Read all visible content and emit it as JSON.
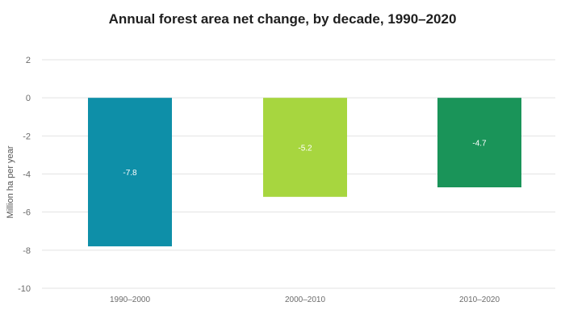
{
  "chart_data": {
    "type": "bar",
    "title": "Annual forest area net change, by decade, 1990–2020",
    "xlabel": "",
    "ylabel": "Million ha per year",
    "categories": [
      "1990–2000",
      "2000–2010",
      "2010–2020"
    ],
    "values": [
      -7.8,
      -5.2,
      -4.7
    ],
    "value_labels": [
      "-7.8",
      "-5.2",
      "-4.7"
    ],
    "colors": [
      "#0e8fa8",
      "#a7d63f",
      "#1a9459"
    ],
    "ylim": [
      -10,
      2
    ],
    "yticks": [
      2,
      0,
      -2,
      -4,
      -6,
      -8,
      -10
    ],
    "ytick_labels": [
      "2",
      "0",
      "-2",
      "-4",
      "-6",
      "-8",
      "-10"
    ],
    "grid": true,
    "legend": "none"
  }
}
